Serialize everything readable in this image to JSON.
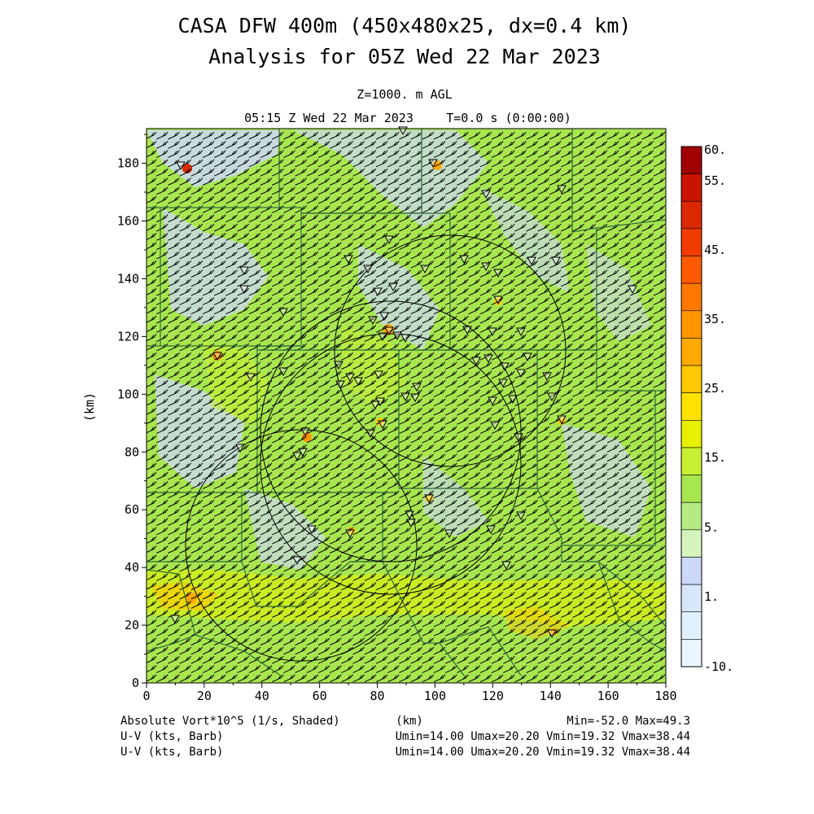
{
  "header": {
    "title_line1": "CASA DFW 400m (450x480x25, dx=0.4 km)",
    "title_line2": "Analysis for 05Z Wed 22 Mar 2023",
    "level": "Z=1000. m AGL",
    "valid_time": "05:15 Z Wed 22 Mar 2023",
    "forecast_time": "T=0.0 s (0:00:00)"
  },
  "axes": {
    "x_ticks": [
      "0",
      "20",
      "40",
      "60",
      "80",
      "100",
      "120",
      "140",
      "160",
      "180"
    ],
    "y_ticks": [
      "0",
      "20",
      "40",
      "60",
      "80",
      "100",
      "120",
      "140",
      "160",
      "180"
    ],
    "x_label": "(km)",
    "y_label": "(km)",
    "x_range": [
      0,
      180
    ],
    "y_range": [
      0,
      192
    ]
  },
  "colorbar": {
    "labels": [
      "60.",
      "55.",
      "45.",
      "35.",
      "25.",
      "15.",
      "5.",
      "1.",
      "-10."
    ],
    "colors": [
      "#a00000",
      "#c81400",
      "#dc2800",
      "#f03c00",
      "#ff5a00",
      "#ff7800",
      "#ff9600",
      "#ffaa00",
      "#ffc800",
      "#ffe100",
      "#e6f000",
      "#c8f032",
      "#a8e650",
      "#b4ec82",
      "#d4f4bc",
      "#ccd8f8",
      "#d8e6fa",
      "#e0f0fc",
      "#eaf6fe"
    ]
  },
  "footer": {
    "left_line1": "Absolute Vort*10^5 (1/s, Shaded)",
    "center_line1": "(km)",
    "right_line1": "Min=-52.0 Max=49.3",
    "left_line2": "U-V (kts, Barb)",
    "right_line2": "Umin=14.00 Umax=20.20 Vmin=19.32 Vmax=38.44",
    "left_line3": "U-V (kts, Barb)",
    "right_line3": "Umin=14.00 Umax=20.20 Vmin=19.32 Vmax=38.44"
  },
  "map": {
    "background_color": "#a8e650",
    "barb_color": "#000000",
    "county_line_color": "#2d6b3a",
    "radar_ring_color": "#000000",
    "station_marker": "triangle-down-icon"
  }
}
